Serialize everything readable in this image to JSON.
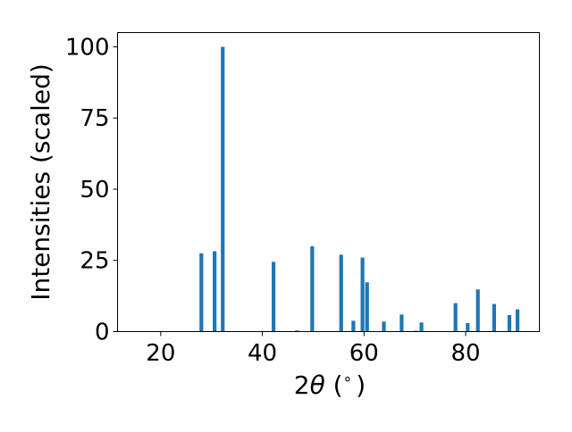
{
  "chart_data": {
    "type": "bar",
    "xlabel_prefix": "2",
    "xlabel_theta": "θ",
    "xlabel_suffix": " (",
    "xlabel_degree": "∘",
    "xlabel_close": ")",
    "ylabel": "Intensities (scaled)",
    "xlim": [
      11.5,
      94.5
    ],
    "ylim": [
      0,
      105
    ],
    "x_ticks": [
      20,
      40,
      60,
      80
    ],
    "y_ticks": [
      0,
      25,
      50,
      75,
      100
    ],
    "grid": false,
    "bar_color": "#1f77b4",
    "bars": [
      {
        "x": 28.0,
        "y": 27.5
      },
      {
        "x": 30.6,
        "y": 28.2
      },
      {
        "x": 32.2,
        "y": 100
      },
      {
        "x": 42.2,
        "y": 24.5
      },
      {
        "x": 46.8,
        "y": 0.4
      },
      {
        "x": 49.8,
        "y": 30.0
      },
      {
        "x": 55.5,
        "y": 27.0
      },
      {
        "x": 57.9,
        "y": 3.8
      },
      {
        "x": 59.7,
        "y": 26.0
      },
      {
        "x": 60.6,
        "y": 17.3
      },
      {
        "x": 63.9,
        "y": 3.5
      },
      {
        "x": 67.4,
        "y": 6.0
      },
      {
        "x": 70.2,
        "y": 0.3
      },
      {
        "x": 71.3,
        "y": 3.2
      },
      {
        "x": 78.0,
        "y": 10.0
      },
      {
        "x": 80.4,
        "y": 3.0
      },
      {
        "x": 82.4,
        "y": 14.8
      },
      {
        "x": 85.6,
        "y": 9.7
      },
      {
        "x": 88.6,
        "y": 5.8
      },
      {
        "x": 90.2,
        "y": 7.8
      }
    ]
  }
}
